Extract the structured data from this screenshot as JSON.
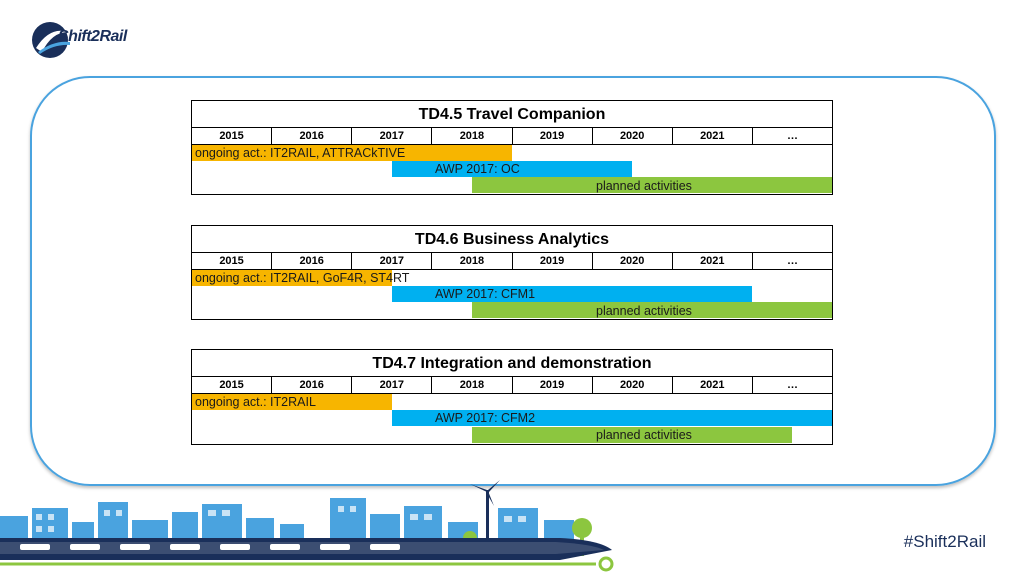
{
  "logo": {
    "text": "Shift2Rail"
  },
  "hashtag": "#Shift2Rail",
  "colors": {
    "ongoing": "#f7b500",
    "awp": "#00b0f0",
    "planned": "#8cc63f",
    "frame": "#4aa3df"
  },
  "years": [
    "2015",
    "2016",
    "2017",
    "2018",
    "2019",
    "2020",
    "2021",
    "…"
  ],
  "tables": [
    {
      "title": "TD4.5 Travel Companion",
      "ongoing": "ongoing act.: IT2RAIL, ATTRACkTIVE",
      "awp": "AWP 2017: OC",
      "planned": "planned activities"
    },
    {
      "title": "TD4.6 Business Analytics",
      "ongoing": "ongoing act.: IT2RAIL, GoF4R, ST4RT",
      "awp": "AWP 2017: CFM1",
      "planned": "planned activities"
    },
    {
      "title": "TD4.7 Integration and demonstration",
      "ongoing": "ongoing act.: IT2RAIL",
      "awp": "AWP 2017: CFM2",
      "planned": "planned activities"
    }
  ]
}
